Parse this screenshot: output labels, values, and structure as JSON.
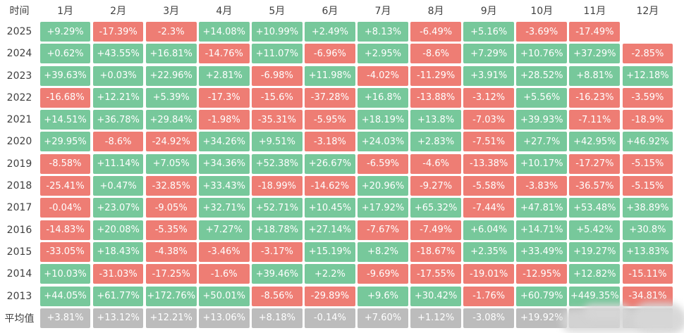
{
  "header": {
    "time_label": "时间"
  },
  "colors": {
    "positive": "#77c89b",
    "negative": "#ee7d74",
    "average": "#bcbcbc",
    "header_text": "#3f3f3f",
    "cell_text": "#ffffff",
    "background": "#ffffff"
  },
  "chart_data": {
    "type": "heatmap",
    "title": "",
    "columns": [
      "1月",
      "2月",
      "3月",
      "4月",
      "5月",
      "6月",
      "7月",
      "8月",
      "9月",
      "10月",
      "11月",
      "12月"
    ],
    "rows": [
      {
        "label": "2025",
        "average": false,
        "values": [
          "+9.29%",
          "-17.39%",
          "-2.3%",
          "+14.08%",
          "+10.99%",
          "+2.49%",
          "+8.13%",
          "-6.49%",
          "+5.16%",
          "-3.69%",
          "-17.49%",
          null
        ]
      },
      {
        "label": "2024",
        "average": false,
        "values": [
          "+0.62%",
          "+43.55%",
          "+16.81%",
          "-14.76%",
          "+11.07%",
          "-6.96%",
          "+2.95%",
          "-8.6%",
          "+7.29%",
          "+10.76%",
          "+37.29%",
          "-2.85%"
        ]
      },
      {
        "label": "2023",
        "average": false,
        "values": [
          "+39.63%",
          "+0.03%",
          "+22.96%",
          "+2.81%",
          "-6.98%",
          "+11.98%",
          "-4.02%",
          "-11.29%",
          "+3.91%",
          "+28.52%",
          "+8.81%",
          "+12.18%"
        ]
      },
      {
        "label": "2022",
        "average": false,
        "values": [
          "-16.68%",
          "+12.21%",
          "+5.39%",
          "-17.3%",
          "-15.6%",
          "-37.28%",
          "+16.8%",
          "-13.88%",
          "-3.12%",
          "+5.56%",
          "-16.23%",
          "-3.59%"
        ]
      },
      {
        "label": "2021",
        "average": false,
        "values": [
          "+14.51%",
          "+36.78%",
          "+29.84%",
          "-1.98%",
          "-35.31%",
          "-5.95%",
          "+18.19%",
          "+13.8%",
          "-7.03%",
          "+39.93%",
          "-7.11%",
          "-18.9%"
        ]
      },
      {
        "label": "2020",
        "average": false,
        "values": [
          "+29.95%",
          "-8.6%",
          "-24.92%",
          "+34.26%",
          "+9.51%",
          "-3.18%",
          "+24.03%",
          "+2.83%",
          "-7.51%",
          "+27.7%",
          "+42.95%",
          "+46.92%"
        ]
      },
      {
        "label": "2019",
        "average": false,
        "values": [
          "-8.58%",
          "+11.14%",
          "+7.05%",
          "+34.36%",
          "+52.38%",
          "+26.67%",
          "-6.59%",
          "-4.6%",
          "-13.38%",
          "+10.17%",
          "-17.27%",
          "-5.15%"
        ]
      },
      {
        "label": "2018",
        "average": false,
        "values": [
          "-25.41%",
          "+0.47%",
          "-32.85%",
          "+33.43%",
          "-18.99%",
          "-14.62%",
          "+20.96%",
          "-9.27%",
          "-5.58%",
          "-3.83%",
          "-36.57%",
          "-5.15%"
        ]
      },
      {
        "label": "2017",
        "average": false,
        "values": [
          "-0.04%",
          "+23.07%",
          "-9.05%",
          "+32.71%",
          "+52.71%",
          "+10.45%",
          "+17.92%",
          "+65.32%",
          "-7.44%",
          "+47.81%",
          "+53.48%",
          "+38.89%"
        ]
      },
      {
        "label": "2016",
        "average": false,
        "values": [
          "-14.83%",
          "+20.08%",
          "-5.35%",
          "+7.27%",
          "+18.78%",
          "+27.14%",
          "-7.67%",
          "-7.49%",
          "+6.04%",
          "+14.71%",
          "+5.42%",
          "+30.8%"
        ]
      },
      {
        "label": "2015",
        "average": false,
        "values": [
          "-33.05%",
          "+18.43%",
          "-4.38%",
          "-3.46%",
          "-3.17%",
          "+15.19%",
          "+8.2%",
          "-18.67%",
          "+2.35%",
          "+33.49%",
          "+19.27%",
          "+13.83%"
        ]
      },
      {
        "label": "2014",
        "average": false,
        "values": [
          "+10.03%",
          "-31.03%",
          "-17.25%",
          "-1.6%",
          "+39.46%",
          "+2.2%",
          "-9.69%",
          "-17.55%",
          "-19.01%",
          "-12.95%",
          "+12.82%",
          "-15.11%"
        ]
      },
      {
        "label": "2013",
        "average": false,
        "values": [
          "+44.05%",
          "+61.77%",
          "+172.76%",
          "+50.01%",
          "-8.56%",
          "-29.89%",
          "+9.6%",
          "+30.42%",
          "-1.76%",
          "+60.79%",
          "+449.35%",
          "-34.81%"
        ]
      },
      {
        "label": "平均值",
        "average": true,
        "values": [
          "+3.81%",
          "+13.12%",
          "+12.21%",
          "+13.06%",
          "+8.18%",
          "-0.14%",
          "+7.60%",
          "+1.12%",
          "-3.08%",
          "+19.92%",
          "",
          ""
        ]
      }
    ]
  }
}
